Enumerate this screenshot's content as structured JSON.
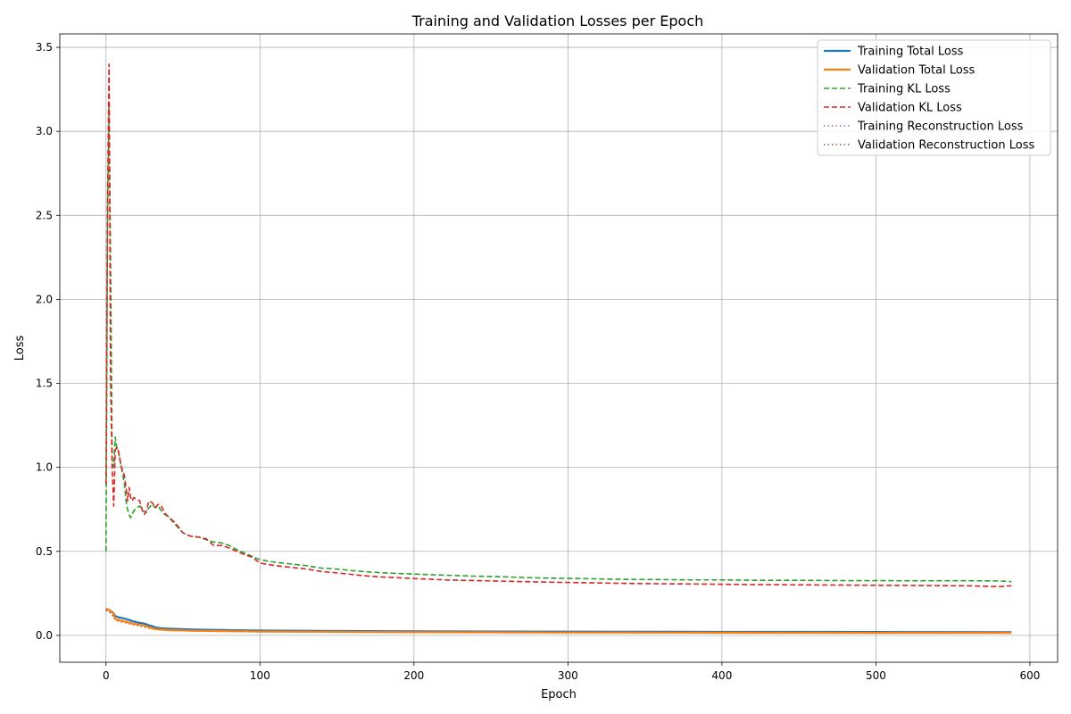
{
  "chart_data": {
    "type": "line",
    "title": "Training and Validation Losses per Epoch",
    "xlabel": "Epoch",
    "ylabel": "Loss",
    "xlim": [
      -30,
      618
    ],
    "ylim": [
      -0.16,
      3.58
    ],
    "xticks": [
      0,
      100,
      200,
      300,
      400,
      500,
      600
    ],
    "yticks": [
      0.0,
      0.5,
      1.0,
      1.5,
      2.0,
      2.5,
      3.0,
      3.5
    ],
    "xtick_labels": [
      "0",
      "100",
      "200",
      "300",
      "400",
      "500",
      "600"
    ],
    "ytick_labels": [
      "0.0",
      "0.5",
      "1.0",
      "1.5",
      "2.0",
      "2.5",
      "3.0",
      "3.5"
    ],
    "grid": true,
    "legend_position": "top-right",
    "series": [
      {
        "name": "Training Total Loss",
        "color": "#1f77b4",
        "style": "solid",
        "x": [
          0,
          2,
          4,
          5,
          6,
          8,
          10,
          12,
          14,
          16,
          18,
          20,
          22,
          24,
          26,
          28,
          30,
          32,
          34,
          36,
          40,
          50,
          60,
          80,
          100,
          150,
          200,
          300,
          400,
          500,
          588
        ],
        "y": [
          0.16,
          0.15,
          0.14,
          0.13,
          0.115,
          0.108,
          0.104,
          0.1,
          0.095,
          0.088,
          0.083,
          0.078,
          0.074,
          0.072,
          0.067,
          0.06,
          0.055,
          0.048,
          0.044,
          0.042,
          0.04,
          0.037,
          0.034,
          0.031,
          0.029,
          0.026,
          0.024,
          0.022,
          0.021,
          0.02,
          0.019
        ]
      },
      {
        "name": "Validation Total Loss",
        "color": "#ff7f0e",
        "style": "solid",
        "x": [
          0,
          2,
          4,
          5,
          6,
          8,
          10,
          12,
          14,
          16,
          18,
          20,
          22,
          24,
          26,
          28,
          30,
          32,
          34,
          36,
          40,
          50,
          60,
          80,
          100,
          150,
          200,
          300,
          400,
          500,
          588
        ],
        "y": [
          0.16,
          0.15,
          0.138,
          0.125,
          0.098,
          0.09,
          0.087,
          0.083,
          0.078,
          0.072,
          0.068,
          0.065,
          0.062,
          0.06,
          0.055,
          0.048,
          0.042,
          0.038,
          0.035,
          0.034,
          0.032,
          0.029,
          0.027,
          0.025,
          0.023,
          0.021,
          0.019,
          0.017,
          0.016,
          0.015,
          0.015
        ]
      },
      {
        "name": "Training KL Loss",
        "color": "#2ca02c",
        "style": "dashed",
        "x": [
          0,
          1,
          2,
          3,
          4,
          5,
          6,
          7,
          8,
          9,
          10,
          11,
          12,
          13,
          14,
          15,
          16,
          18,
          20,
          22,
          24,
          26,
          28,
          30,
          32,
          34,
          36,
          38,
          40,
          45,
          50,
          55,
          60,
          65,
          70,
          75,
          80,
          85,
          90,
          95,
          100,
          110,
          120,
          130,
          140,
          150,
          160,
          170,
          180,
          190,
          200,
          220,
          240,
          260,
          280,
          300,
          320,
          340,
          360,
          380,
          400,
          420,
          440,
          460,
          480,
          500,
          520,
          540,
          560,
          580,
          588
        ],
        "y": [
          0.5,
          2.4,
          3.15,
          2.2,
          1.05,
          1.0,
          1.18,
          1.12,
          1.1,
          1.05,
          1.0,
          0.95,
          0.9,
          0.8,
          0.75,
          0.72,
          0.7,
          0.74,
          0.76,
          0.77,
          0.74,
          0.73,
          0.76,
          0.78,
          0.76,
          0.77,
          0.74,
          0.72,
          0.71,
          0.66,
          0.61,
          0.59,
          0.585,
          0.57,
          0.555,
          0.55,
          0.535,
          0.51,
          0.49,
          0.47,
          0.45,
          0.435,
          0.425,
          0.415,
          0.4,
          0.395,
          0.385,
          0.378,
          0.372,
          0.368,
          0.365,
          0.358,
          0.352,
          0.348,
          0.342,
          0.339,
          0.336,
          0.333,
          0.332,
          0.33,
          0.33,
          0.328,
          0.328,
          0.327,
          0.326,
          0.326,
          0.325,
          0.325,
          0.325,
          0.324,
          0.32
        ]
      },
      {
        "name": "Validation KL Loss",
        "color": "#d62728",
        "style": "dashed",
        "x": [
          0,
          1,
          2,
          3,
          4,
          5,
          6,
          7,
          8,
          9,
          10,
          11,
          12,
          13,
          14,
          15,
          16,
          17,
          18,
          20,
          22,
          24,
          25,
          26,
          28,
          30,
          32,
          34,
          36,
          38,
          40,
          45,
          50,
          55,
          60,
          65,
          70,
          75,
          80,
          85,
          90,
          95,
          100,
          110,
          120,
          130,
          140,
          150,
          160,
          170,
          180,
          190,
          200,
          220,
          240,
          260,
          280,
          300,
          320,
          340,
          360,
          380,
          400,
          420,
          440,
          460,
          480,
          500,
          520,
          540,
          560,
          580,
          588
        ],
        "y": [
          0.9,
          2.6,
          3.4,
          1.5,
          1.0,
          0.77,
          1.1,
          1.12,
          1.1,
          1.05,
          1.0,
          0.98,
          0.95,
          0.88,
          0.8,
          0.88,
          0.82,
          0.8,
          0.82,
          0.81,
          0.8,
          0.73,
          0.72,
          0.74,
          0.8,
          0.79,
          0.76,
          0.78,
          0.77,
          0.73,
          0.71,
          0.67,
          0.61,
          0.59,
          0.585,
          0.575,
          0.535,
          0.535,
          0.52,
          0.5,
          0.48,
          0.465,
          0.43,
          0.415,
          0.405,
          0.395,
          0.38,
          0.372,
          0.362,
          0.353,
          0.347,
          0.343,
          0.338,
          0.33,
          0.326,
          0.322,
          0.318,
          0.315,
          0.312,
          0.309,
          0.307,
          0.306,
          0.304,
          0.302,
          0.301,
          0.3,
          0.299,
          0.298,
          0.297,
          0.296,
          0.295,
          0.29,
          0.295
        ]
      },
      {
        "name": "Training Reconstruction Loss",
        "color": "#9467bd",
        "style": "dotted",
        "x": [
          0,
          2,
          4,
          6,
          10,
          20,
          30,
          40,
          60,
          100,
          200,
          300,
          400,
          500,
          588
        ],
        "y": [
          0.15,
          0.14,
          0.125,
          0.1,
          0.09,
          0.07,
          0.045,
          0.035,
          0.03,
          0.025,
          0.021,
          0.019,
          0.018,
          0.017,
          0.016
        ]
      },
      {
        "name": "Validation Reconstruction Loss",
        "color": "#8c564b",
        "style": "dotted",
        "x": [
          0,
          2,
          4,
          6,
          10,
          20,
          30,
          40,
          60,
          100,
          200,
          300,
          400,
          500,
          588
        ],
        "y": [
          0.15,
          0.14,
          0.122,
          0.09,
          0.08,
          0.06,
          0.038,
          0.03,
          0.025,
          0.021,
          0.017,
          0.015,
          0.014,
          0.013,
          0.013
        ]
      }
    ]
  }
}
